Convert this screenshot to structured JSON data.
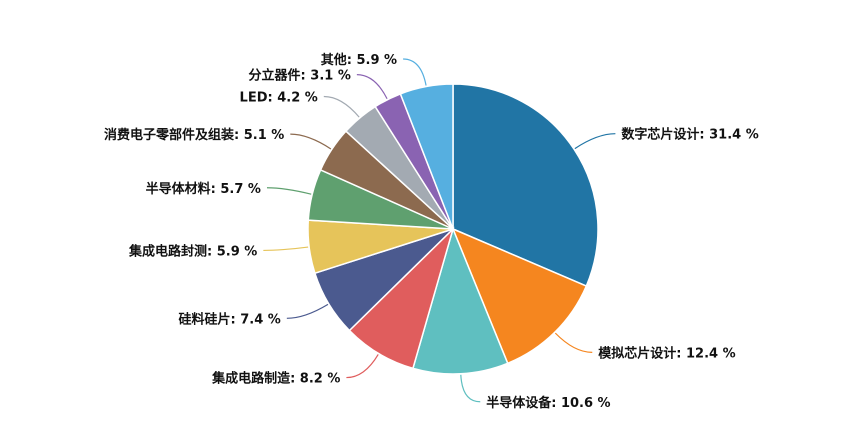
{
  "chart_data": {
    "type": "pie",
    "title": "",
    "unit": "%",
    "slices": [
      {
        "label": "数字芯片设计",
        "value": 31.4,
        "color": "#2175a5"
      },
      {
        "label": "模拟芯片设计",
        "value": 12.4,
        "color": "#f5861f"
      },
      {
        "label": "半导体设备",
        "value": 10.6,
        "color": "#5fbfc0"
      },
      {
        "label": "集成电路制造",
        "value": 8.2,
        "color": "#e05d5d"
      },
      {
        "label": "硅料硅片",
        "value": 7.4,
        "color": "#4b5a8f"
      },
      {
        "label": "集成电路封测",
        "value": 5.9,
        "color": "#e6c45a"
      },
      {
        "label": "半导体材料",
        "value": 5.7,
        "color": "#5fa06f"
      },
      {
        "label": "消费电子零部件及组装",
        "value": 5.1,
        "color": "#8c6a4f"
      },
      {
        "label": "LED",
        "value": 4.2,
        "color": "#a3aab2"
      },
      {
        "label": "分立器件",
        "value": 3.1,
        "color": "#8a63b2"
      },
      {
        "label": "其他",
        "value": 5.9,
        "color": "#56afe0"
      }
    ]
  }
}
